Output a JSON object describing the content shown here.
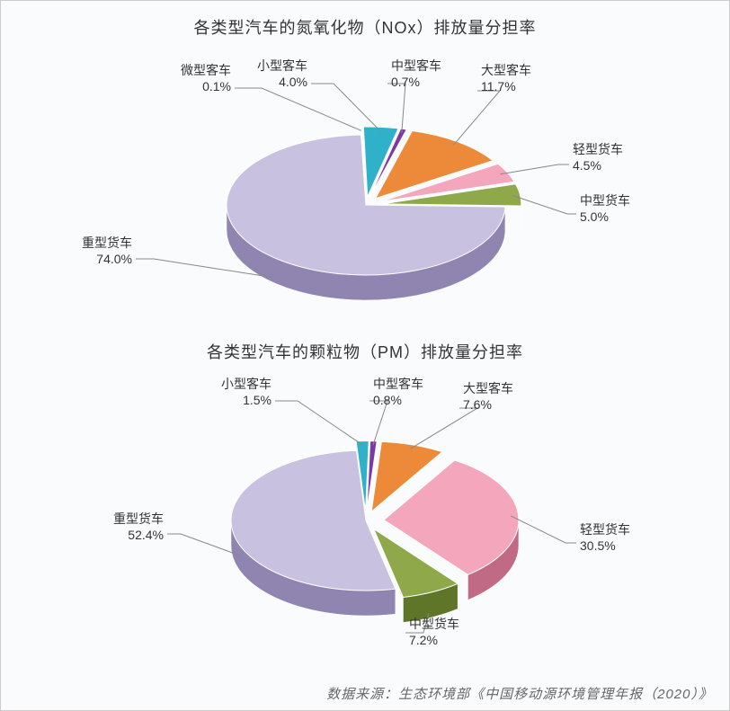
{
  "chart1": {
    "type": "pie-3d",
    "title": "各类型汽车的氮氧化物（NOx）排放量分担率",
    "title_fontsize": 18,
    "background_color": "#fafbfc",
    "slices": [
      {
        "label": "微型客车",
        "value": 0.1,
        "pct": "0.1%",
        "color_top": "#ffffd0",
        "color_side": "#c8c870",
        "exploded": true
      },
      {
        "label": "小型客车",
        "value": 4.0,
        "pct": "4.0%",
        "color_top": "#2fb2c9",
        "color_side": "#1e7a8a",
        "exploded": true
      },
      {
        "label": "中型客车",
        "value": 0.7,
        "pct": "0.7%",
        "color_top": "#7a3aa6",
        "color_side": "#4d2168",
        "exploded": true
      },
      {
        "label": "大型客车",
        "value": 11.7,
        "pct": "11.7%",
        "color_top": "#ed8a3a",
        "color_side": "#b55f1e",
        "exploded": true
      },
      {
        "label": "轻型货车",
        "value": 4.5,
        "pct": "4.5%",
        "color_top": "#f4a6bd",
        "color_side": "#c06a85",
        "exploded": true
      },
      {
        "label": "中型货车",
        "value": 5.0,
        "pct": "5.0%",
        "color_top": "#8fa84a",
        "color_side": "#5f7628",
        "exploded": true
      },
      {
        "label": "重型货车",
        "value": 74.0,
        "pct": "74.0%",
        "color_top": "#c9c1e0",
        "color_side": "#8f85b0",
        "exploded": false
      }
    ],
    "label_fontsize": 14,
    "leader_line_color": "#888888"
  },
  "chart2": {
    "type": "pie-3d",
    "title": "各类型汽车的颗粒物（PM）排放量分担率",
    "title_fontsize": 18,
    "background_color": "#fafbfc",
    "slices": [
      {
        "label": "小型客车",
        "value": 1.5,
        "pct": "1.5%",
        "color_top": "#2fb2c9",
        "color_side": "#1e7a8a",
        "exploded": true
      },
      {
        "label": "中型客车",
        "value": 0.8,
        "pct": "0.8%",
        "color_top": "#7a3aa6",
        "color_side": "#4d2168",
        "exploded": true
      },
      {
        "label": "大型客车",
        "value": 7.6,
        "pct": "7.6%",
        "color_top": "#ed8a3a",
        "color_side": "#b55f1e",
        "exploded": true
      },
      {
        "label": "轻型货车",
        "value": 30.5,
        "pct": "30.5%",
        "color_top": "#f4a6bd",
        "color_side": "#c06a85",
        "exploded": true
      },
      {
        "label": "中型货车",
        "value": 7.2,
        "pct": "7.2%",
        "color_top": "#8fa84a",
        "color_side": "#5f7628",
        "exploded": true
      },
      {
        "label": "重型货车",
        "value": 52.4,
        "pct": "52.4%",
        "color_top": "#c9c1e0",
        "color_side": "#8f85b0",
        "exploded": false
      }
    ],
    "label_fontsize": 14,
    "leader_line_color": "#888888"
  },
  "source_text": "数据来源：生态环境部《中国移动源环境管理年报（2020）》"
}
